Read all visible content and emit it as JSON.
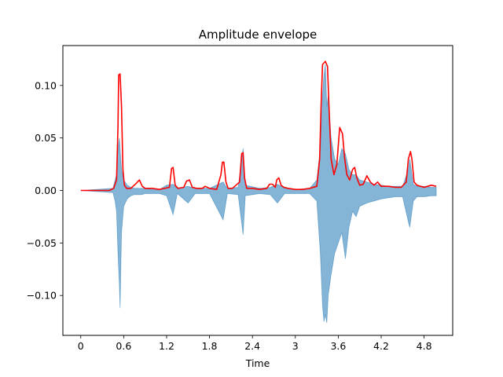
{
  "chart_data": {
    "type": "line",
    "title": "Amplitude envelope",
    "xlabel": "Time",
    "ylabel": "",
    "xlim": [
      -0.25,
      5.2
    ],
    "ylim": [
      -0.138,
      0.138
    ],
    "x_ticks": [
      0,
      0.6,
      1.2,
      1.8,
      2.4,
      3,
      3.6,
      4.2,
      4.8
    ],
    "x_tick_labels": [
      "0",
      "0.6",
      "1.2",
      "1.8",
      "2.4",
      "3",
      "3.6",
      "4.2",
      "4.8"
    ],
    "y_ticks": [
      -0.1,
      -0.05,
      0.0,
      0.05,
      0.1
    ],
    "y_tick_labels": [
      "−0.10",
      "−0.05",
      "0.00",
      "0.05",
      "0.10"
    ],
    "grid": false,
    "colors": {
      "waveform": "#1f77b4",
      "envelope": "#ff0000"
    },
    "series": [
      {
        "role": "waveform",
        "ranges": [
          [
            0.0,
            0.0,
            0.0
          ],
          [
            0.45,
            0.002,
            -0.002
          ],
          [
            0.48,
            0.01,
            -0.01
          ],
          [
            0.5,
            0.015,
            -0.02
          ],
          [
            0.52,
            0.04,
            -0.06
          ],
          [
            0.54,
            0.05,
            -0.09
          ],
          [
            0.55,
            0.04,
            -0.112
          ],
          [
            0.57,
            0.02,
            -0.04
          ],
          [
            0.6,
            0.01,
            -0.015
          ],
          [
            0.65,
            0.005,
            -0.008
          ],
          [
            0.7,
            0.003,
            -0.005
          ],
          [
            0.75,
            0.002,
            -0.004
          ],
          [
            0.8,
            0.002,
            -0.004
          ],
          [
            0.85,
            0.002,
            -0.004
          ],
          [
            0.9,
            0.002,
            -0.003
          ],
          [
            1.0,
            0.001,
            -0.003
          ],
          [
            1.1,
            0.001,
            -0.003
          ],
          [
            1.2,
            0.005,
            -0.005
          ],
          [
            1.29,
            0.006,
            -0.023
          ],
          [
            1.35,
            0.002,
            -0.003
          ],
          [
            1.5,
            0.004,
            -0.012
          ],
          [
            1.6,
            0.002,
            -0.003
          ],
          [
            1.8,
            0.002,
            -0.003
          ],
          [
            1.99,
            0.008,
            -0.028
          ],
          [
            2.05,
            0.002,
            -0.003
          ],
          [
            2.2,
            0.003,
            -0.004
          ],
          [
            2.27,
            0.04,
            -0.042
          ],
          [
            2.3,
            0.005,
            -0.005
          ],
          [
            2.5,
            0.002,
            -0.003
          ],
          [
            2.65,
            0.003,
            -0.004
          ],
          [
            2.75,
            0.006,
            -0.012
          ],
          [
            2.85,
            0.002,
            -0.003
          ],
          [
            3.0,
            0.001,
            -0.003
          ],
          [
            3.2,
            0.002,
            -0.003
          ],
          [
            3.3,
            0.01,
            -0.01
          ],
          [
            3.35,
            0.04,
            -0.06
          ],
          [
            3.38,
            0.09,
            -0.11
          ],
          [
            3.4,
            0.11,
            -0.125
          ],
          [
            3.42,
            0.12,
            -0.118
          ],
          [
            3.44,
            0.08,
            -0.126
          ],
          [
            3.46,
            0.09,
            -0.1
          ],
          [
            3.5,
            0.05,
            -0.08
          ],
          [
            3.55,
            0.03,
            -0.06
          ],
          [
            3.6,
            0.025,
            -0.05
          ],
          [
            3.65,
            0.04,
            -0.04
          ],
          [
            3.7,
            0.035,
            -0.065
          ],
          [
            3.75,
            0.02,
            -0.035
          ],
          [
            3.8,
            0.015,
            -0.02
          ],
          [
            3.85,
            0.015,
            -0.025
          ],
          [
            3.9,
            0.01,
            -0.015
          ],
          [
            4.0,
            0.008,
            -0.012
          ],
          [
            4.1,
            0.006,
            -0.01
          ],
          [
            4.2,
            0.005,
            -0.008
          ],
          [
            4.3,
            0.004,
            -0.007
          ],
          [
            4.4,
            0.004,
            -0.006
          ],
          [
            4.5,
            0.004,
            -0.006
          ],
          [
            4.58,
            0.02,
            -0.03
          ],
          [
            4.6,
            0.03,
            -0.035
          ],
          [
            4.65,
            0.006,
            -0.01
          ],
          [
            4.7,
            0.004,
            -0.006
          ],
          [
            4.8,
            0.004,
            -0.006
          ],
          [
            4.9,
            0.003,
            -0.005
          ],
          [
            4.97,
            0.003,
            -0.005
          ]
        ]
      },
      {
        "role": "envelope",
        "x": [
          0.0,
          0.4,
          0.46,
          0.5,
          0.52,
          0.53,
          0.55,
          0.57,
          0.59,
          0.61,
          0.64,
          0.7,
          0.78,
          0.82,
          0.86,
          0.9,
          1.0,
          1.1,
          1.24,
          1.27,
          1.29,
          1.32,
          1.36,
          1.44,
          1.48,
          1.52,
          1.56,
          1.62,
          1.7,
          1.74,
          1.8,
          1.9,
          1.96,
          1.98,
          2.0,
          2.03,
          2.06,
          2.12,
          2.22,
          2.25,
          2.27,
          2.29,
          2.32,
          2.4,
          2.5,
          2.6,
          2.64,
          2.68,
          2.72,
          2.74,
          2.77,
          2.8,
          2.84,
          2.9,
          3.0,
          3.1,
          3.2,
          3.3,
          3.34,
          3.36,
          3.38,
          3.42,
          3.45,
          3.47,
          3.5,
          3.54,
          3.58,
          3.62,
          3.66,
          3.69,
          3.72,
          3.76,
          3.8,
          3.83,
          3.86,
          3.9,
          3.95,
          4.0,
          4.05,
          4.1,
          4.15,
          4.2,
          4.3,
          4.4,
          4.48,
          4.55,
          4.58,
          4.61,
          4.63,
          4.66,
          4.7,
          4.75,
          4.8,
          4.85,
          4.9,
          4.97
        ],
        "y": [
          0.0,
          0.0,
          0.002,
          0.01,
          0.06,
          0.11,
          0.111,
          0.08,
          0.02,
          0.005,
          0.002,
          0.002,
          0.007,
          0.01,
          0.004,
          0.002,
          0.002,
          0.001,
          0.003,
          0.021,
          0.022,
          0.005,
          0.002,
          0.003,
          0.009,
          0.01,
          0.003,
          0.002,
          0.002,
          0.004,
          0.002,
          0.001,
          0.015,
          0.027,
          0.027,
          0.008,
          0.002,
          0.002,
          0.008,
          0.035,
          0.036,
          0.012,
          0.002,
          0.002,
          0.001,
          0.002,
          0.006,
          0.006,
          0.003,
          0.01,
          0.012,
          0.005,
          0.003,
          0.002,
          0.001,
          0.001,
          0.002,
          0.004,
          0.03,
          0.08,
          0.12,
          0.123,
          0.118,
          0.08,
          0.03,
          0.015,
          0.025,
          0.06,
          0.054,
          0.03,
          0.015,
          0.01,
          0.02,
          0.022,
          0.012,
          0.005,
          0.006,
          0.014,
          0.008,
          0.005,
          0.008,
          0.004,
          0.004,
          0.003,
          0.003,
          0.008,
          0.03,
          0.037,
          0.03,
          0.008,
          0.005,
          0.004,
          0.003,
          0.004,
          0.005,
          0.004
        ]
      }
    ]
  }
}
